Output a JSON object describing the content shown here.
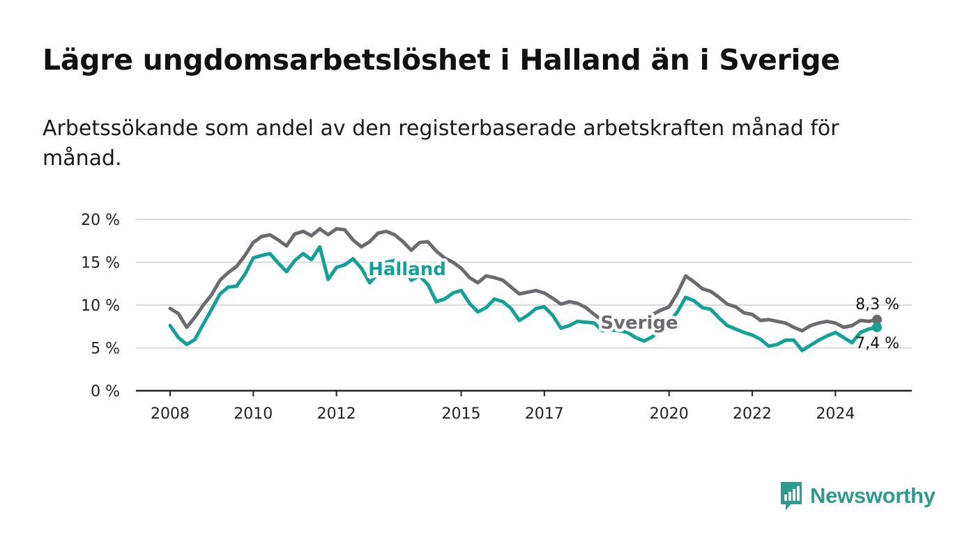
{
  "title": "Lägre ungdomsarbetslöshet i Halland än i Sverige",
  "subtitle": "Arbetssökande som andel av den registerbaserade arbetskraften månad för månad.",
  "brand": {
    "name": "Newsworthy",
    "icon": "newsworthy-chat-bar-icon",
    "color": "#2f9a8d"
  },
  "chart_data": {
    "type": "line",
    "title": "Lägre ungdomsarbetslöshet i Halland än i Sverige",
    "subtitle": "Arbetssökande som andel av den registerbaserade arbetskraften månad för månad.",
    "xlabel": "",
    "ylabel": "",
    "x_tick_labels": [
      "2008",
      "2010",
      "2012",
      "2015",
      "2017",
      "2020",
      "2022",
      "2024"
    ],
    "y_tick_labels": [
      "0 %",
      "5 %",
      "10 %",
      "15 %",
      "20 %"
    ],
    "y_ticks": [
      0,
      5,
      10,
      15,
      20
    ],
    "xlim": [
      2008.0,
      2025.0
    ],
    "ylim": [
      0,
      20
    ],
    "grid": "horizontal",
    "legend": "inline labels",
    "series": [
      {
        "name": "Sverige",
        "color": "#6b6a70",
        "end_label": "8,3 %",
        "points": [
          [
            2008.0,
            9.6
          ],
          [
            2008.2,
            9.0
          ],
          [
            2008.4,
            7.4
          ],
          [
            2008.6,
            8.6
          ],
          [
            2008.8,
            10.0
          ],
          [
            2009.0,
            11.2
          ],
          [
            2009.2,
            12.9
          ],
          [
            2009.4,
            13.8
          ],
          [
            2009.6,
            14.5
          ],
          [
            2009.8,
            15.8
          ],
          [
            2010.0,
            17.3
          ],
          [
            2010.2,
            18.0
          ],
          [
            2010.4,
            18.2
          ],
          [
            2010.6,
            17.6
          ],
          [
            2010.8,
            16.9
          ],
          [
            2011.0,
            18.3
          ],
          [
            2011.2,
            18.6
          ],
          [
            2011.4,
            18.1
          ],
          [
            2011.6,
            18.9
          ],
          [
            2011.8,
            18.2
          ],
          [
            2012.0,
            18.9
          ],
          [
            2012.2,
            18.8
          ],
          [
            2012.4,
            17.6
          ],
          [
            2012.6,
            16.8
          ],
          [
            2012.8,
            17.4
          ],
          [
            2013.0,
            18.4
          ],
          [
            2013.2,
            18.6
          ],
          [
            2013.4,
            18.2
          ],
          [
            2013.6,
            17.4
          ],
          [
            2013.8,
            16.4
          ],
          [
            2014.0,
            17.3
          ],
          [
            2014.2,
            17.4
          ],
          [
            2014.4,
            16.3
          ],
          [
            2014.6,
            15.5
          ],
          [
            2014.8,
            15.0
          ],
          [
            2015.0,
            14.3
          ],
          [
            2015.2,
            13.2
          ],
          [
            2015.4,
            12.6
          ],
          [
            2015.6,
            13.4
          ],
          [
            2015.8,
            13.2
          ],
          [
            2016.0,
            12.9
          ],
          [
            2016.2,
            12.1
          ],
          [
            2016.4,
            11.3
          ],
          [
            2016.6,
            11.5
          ],
          [
            2016.8,
            11.7
          ],
          [
            2017.0,
            11.4
          ],
          [
            2017.2,
            10.8
          ],
          [
            2017.4,
            10.1
          ],
          [
            2017.6,
            10.4
          ],
          [
            2017.8,
            10.2
          ],
          [
            2018.0,
            9.7
          ],
          [
            2018.2,
            8.9
          ],
          [
            2018.4,
            8.2
          ],
          [
            2018.6,
            8.4
          ],
          [
            2018.8,
            8.0
          ],
          [
            2019.0,
            8.1
          ],
          [
            2019.2,
            8.3
          ],
          [
            2019.4,
            8.4
          ],
          [
            2019.6,
            8.9
          ],
          [
            2019.8,
            9.4
          ],
          [
            2020.0,
            9.8
          ],
          [
            2020.2,
            11.4
          ],
          [
            2020.4,
            13.4
          ],
          [
            2020.6,
            12.7
          ],
          [
            2020.8,
            11.9
          ],
          [
            2021.0,
            11.6
          ],
          [
            2021.2,
            10.9
          ],
          [
            2021.4,
            10.1
          ],
          [
            2021.6,
            9.8
          ],
          [
            2021.8,
            9.1
          ],
          [
            2022.0,
            8.9
          ],
          [
            2022.2,
            8.2
          ],
          [
            2022.4,
            8.3
          ],
          [
            2022.6,
            8.1
          ],
          [
            2022.8,
            7.9
          ],
          [
            2023.0,
            7.4
          ],
          [
            2023.2,
            7.0
          ],
          [
            2023.4,
            7.6
          ],
          [
            2023.6,
            7.9
          ],
          [
            2023.8,
            8.1
          ],
          [
            2024.0,
            7.9
          ],
          [
            2024.2,
            7.4
          ],
          [
            2024.4,
            7.6
          ],
          [
            2024.6,
            8.2
          ],
          [
            2024.8,
            8.1
          ],
          [
            2025.0,
            8.3
          ]
        ]
      },
      {
        "name": "Halland",
        "color": "#10a197",
        "end_label": "7,4 %",
        "points": [
          [
            2008.0,
            7.6
          ],
          [
            2008.2,
            6.2
          ],
          [
            2008.4,
            5.4
          ],
          [
            2008.6,
            6.0
          ],
          [
            2008.8,
            7.8
          ],
          [
            2009.0,
            9.5
          ],
          [
            2009.2,
            11.3
          ],
          [
            2009.4,
            12.1
          ],
          [
            2009.6,
            12.2
          ],
          [
            2009.8,
            13.6
          ],
          [
            2010.0,
            15.5
          ],
          [
            2010.2,
            15.8
          ],
          [
            2010.4,
            16.0
          ],
          [
            2010.6,
            14.9
          ],
          [
            2010.8,
            13.9
          ],
          [
            2011.0,
            15.2
          ],
          [
            2011.2,
            16.0
          ],
          [
            2011.4,
            15.3
          ],
          [
            2011.6,
            16.8
          ],
          [
            2011.8,
            13.0
          ],
          [
            2012.0,
            14.4
          ],
          [
            2012.2,
            14.7
          ],
          [
            2012.4,
            15.4
          ],
          [
            2012.6,
            14.3
          ],
          [
            2012.8,
            12.6
          ],
          [
            2013.0,
            13.7
          ],
          [
            2013.2,
            15.0
          ],
          [
            2013.4,
            15.2
          ],
          [
            2013.6,
            14.8
          ],
          [
            2013.8,
            12.9
          ],
          [
            2014.0,
            13.4
          ],
          [
            2014.2,
            12.4
          ],
          [
            2014.4,
            10.4
          ],
          [
            2014.6,
            10.7
          ],
          [
            2014.8,
            11.4
          ],
          [
            2015.0,
            11.7
          ],
          [
            2015.2,
            10.2
          ],
          [
            2015.4,
            9.2
          ],
          [
            2015.6,
            9.7
          ],
          [
            2015.8,
            10.7
          ],
          [
            2016.0,
            10.4
          ],
          [
            2016.2,
            9.6
          ],
          [
            2016.4,
            8.2
          ],
          [
            2016.6,
            8.8
          ],
          [
            2016.8,
            9.6
          ],
          [
            2017.0,
            9.8
          ],
          [
            2017.2,
            8.8
          ],
          [
            2017.4,
            7.3
          ],
          [
            2017.6,
            7.6
          ],
          [
            2017.8,
            8.1
          ],
          [
            2018.0,
            8.0
          ],
          [
            2018.2,
            7.9
          ],
          [
            2018.4,
            7.0
          ],
          [
            2018.6,
            7.1
          ],
          [
            2018.8,
            7.0
          ],
          [
            2019.0,
            6.8
          ],
          [
            2019.2,
            6.2
          ],
          [
            2019.4,
            5.8
          ],
          [
            2019.6,
            6.3
          ],
          [
            2019.8,
            7.3
          ],
          [
            2020.0,
            8.0
          ],
          [
            2020.2,
            9.2
          ],
          [
            2020.4,
            10.9
          ],
          [
            2020.6,
            10.5
          ],
          [
            2020.8,
            9.7
          ],
          [
            2021.0,
            9.5
          ],
          [
            2021.2,
            8.5
          ],
          [
            2021.4,
            7.6
          ],
          [
            2021.6,
            7.2
          ],
          [
            2021.8,
            6.8
          ],
          [
            2022.0,
            6.5
          ],
          [
            2022.2,
            6.0
          ],
          [
            2022.4,
            5.2
          ],
          [
            2022.6,
            5.4
          ],
          [
            2022.8,
            5.9
          ],
          [
            2023.0,
            5.9
          ],
          [
            2023.2,
            4.7
          ],
          [
            2023.4,
            5.3
          ],
          [
            2023.6,
            5.9
          ],
          [
            2023.8,
            6.4
          ],
          [
            2024.0,
            6.8
          ],
          [
            2024.2,
            6.2
          ],
          [
            2024.4,
            5.6
          ],
          [
            2024.6,
            6.8
          ],
          [
            2024.8,
            7.2
          ],
          [
            2025.0,
            7.4
          ]
        ]
      }
    ]
  }
}
